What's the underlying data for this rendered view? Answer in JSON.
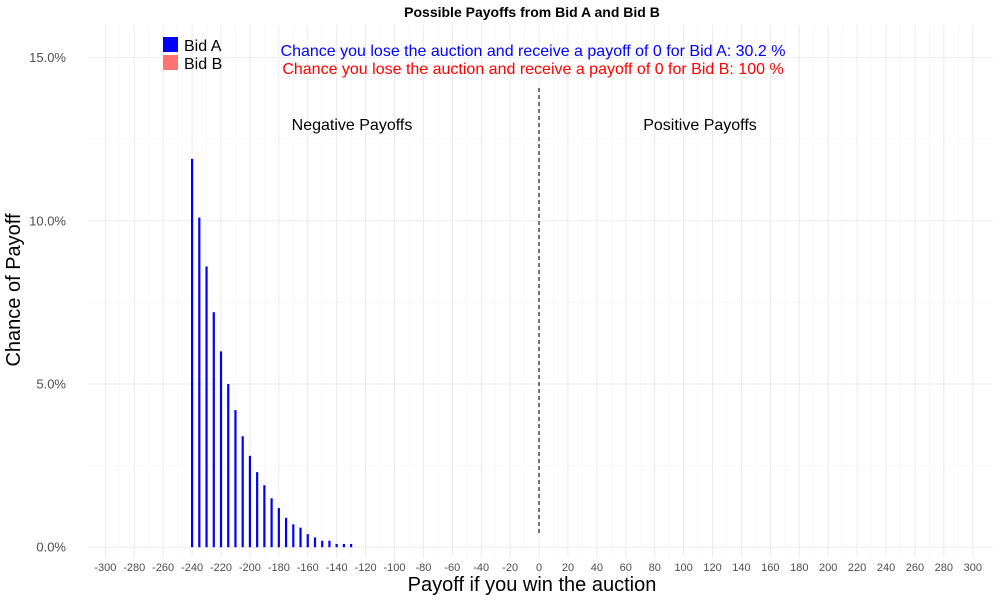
{
  "chart_data": {
    "type": "bar",
    "title": "Possible Payoffs from Bid A and Bid B",
    "xlabel": "Payoff if you win the auction",
    "ylabel": "Chance of Payoff",
    "xlim": [
      -312,
      314
    ],
    "ylim": [
      -0.3,
      16.0
    ],
    "x_ticks": [
      -300,
      -280,
      -260,
      -240,
      -220,
      -200,
      -180,
      -160,
      -140,
      -120,
      -100,
      -80,
      -60,
      -40,
      -20,
      0,
      20,
      40,
      60,
      80,
      100,
      120,
      140,
      160,
      180,
      200,
      220,
      240,
      260,
      280,
      300
    ],
    "x_tick_labels": [
      "-300",
      "-280",
      "-260",
      "-240",
      "-220",
      "-200",
      "-180",
      "-160",
      "-140",
      "-120",
      "-100",
      "-80",
      "-60",
      "-40",
      "-20",
      "0",
      "20",
      "40",
      "60",
      "80",
      "100",
      "120",
      "140",
      "160",
      "180",
      "200",
      "220",
      "240",
      "260",
      "280",
      "300"
    ],
    "y_ticks": [
      0,
      5,
      10,
      15
    ],
    "y_tick_labels": [
      "0.0%",
      "5.0%",
      "10.0%",
      "15.0%"
    ],
    "grid": true,
    "legend": {
      "position": "top-left",
      "entries": [
        {
          "name": "Bid A",
          "color": "#0000ff"
        },
        {
          "name": "Bid B",
          "color": "#ff7373"
        }
      ]
    },
    "series": [
      {
        "name": "Bid A",
        "color": "#0000ff",
        "x": [
          -240,
          -235,
          -230,
          -225,
          -220,
          -215,
          -210,
          -205,
          -200,
          -195,
          -190,
          -185,
          -180,
          -175,
          -170,
          -165,
          -160,
          -155,
          -150,
          -145,
          -140,
          -135,
          -130
        ],
        "values": [
          11.9,
          10.1,
          8.6,
          7.2,
          6.0,
          5.0,
          4.2,
          3.4,
          2.8,
          2.3,
          1.9,
          1.5,
          1.2,
          0.9,
          0.7,
          0.6,
          0.4,
          0.3,
          0.2,
          0.2,
          0.1,
          0.1,
          0.1
        ]
      },
      {
        "name": "Bid B",
        "color": "#ff7373",
        "x": [],
        "values": []
      }
    ],
    "reference_line": {
      "x": 0,
      "style": "dashed",
      "color": "#666666"
    },
    "annotations": [
      {
        "text": "Chance you lose the auction and receive a payoff of 0 for Bid A:  30.2 %",
        "color": "#0000ff"
      },
      {
        "text": "Chance you lose the auction and receive a payoff of 0 for Bid B:  100 %",
        "color": "#ff0000"
      },
      {
        "text": "Negative Payoffs",
        "color": "#000000"
      },
      {
        "text": "Positive Payoffs",
        "color": "#000000"
      }
    ]
  }
}
